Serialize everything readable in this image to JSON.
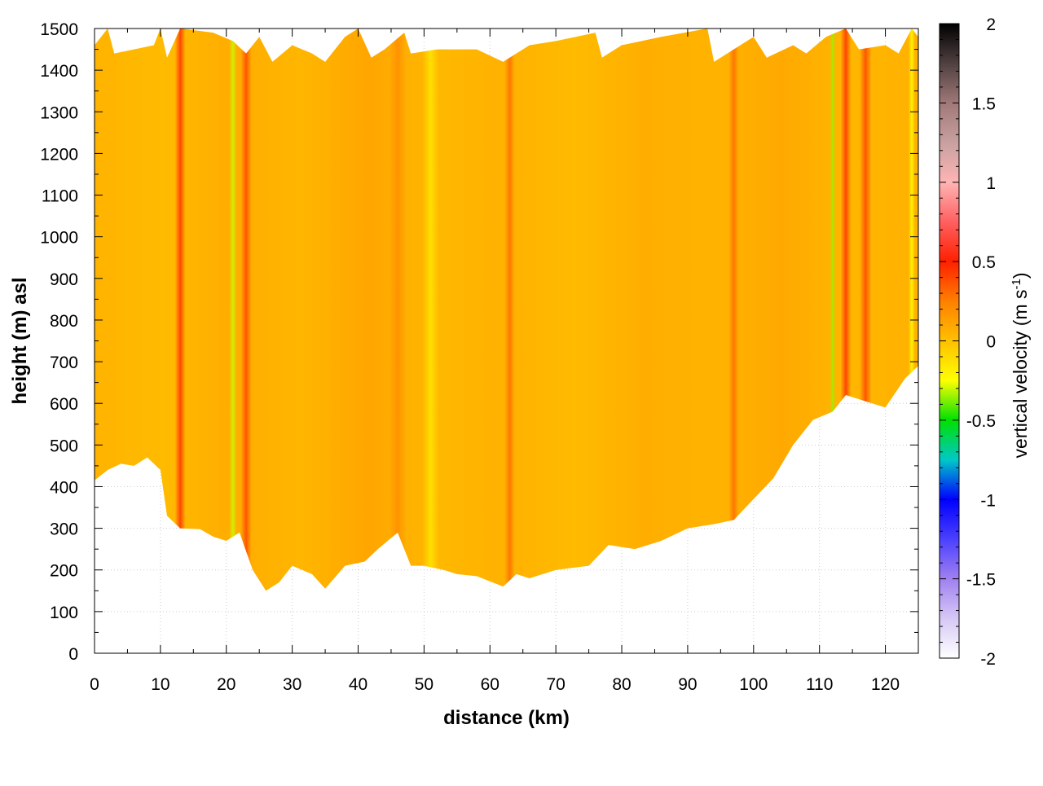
{
  "chart_data": {
    "type": "heatmap",
    "title": "",
    "xlabel": "distance (km)",
    "ylabel": "height (m) asl",
    "colorbar_label": "vertical velocity (m s",
    "colorbar_label_sup": "-1",
    "colorbar_label_end": ")",
    "xlim": [
      0,
      125
    ],
    "ylim": [
      0,
      1500
    ],
    "x_ticks": [
      "0",
      "10",
      "20",
      "30",
      "40",
      "50",
      "60",
      "70",
      "80",
      "90",
      "100",
      "110",
      "120"
    ],
    "x_tick_values": [
      0,
      10,
      20,
      30,
      40,
      50,
      60,
      70,
      80,
      90,
      100,
      110,
      120
    ],
    "y_ticks": [
      "0",
      "100",
      "200",
      "300",
      "400",
      "500",
      "600",
      "700",
      "800",
      "900",
      "1000",
      "1100",
      "1200",
      "1300",
      "1400",
      "1500"
    ],
    "y_tick_values": [
      0,
      100,
      200,
      300,
      400,
      500,
      600,
      700,
      800,
      900,
      1000,
      1100,
      1200,
      1300,
      1400,
      1500
    ],
    "colorbar_ticks": [
      "2",
      "1.5",
      "1",
      "0.5",
      "0",
      "-0.5",
      "-1",
      "-1.5",
      "-2"
    ],
    "colorbar_tick_values": [
      2,
      1.5,
      1,
      0.5,
      0,
      -0.5,
      -1,
      -1.5,
      -2
    ],
    "colorbar_range": [
      -2,
      2
    ],
    "grid": true,
    "colormap": [
      {
        "v": -2.0,
        "color": "#ffffff"
      },
      {
        "v": -1.75,
        "color": "#d6c8f5"
      },
      {
        "v": -1.5,
        "color": "#a080f0"
      },
      {
        "v": -1.25,
        "color": "#4b40ff"
      },
      {
        "v": -1.0,
        "color": "#0000ff"
      },
      {
        "v": -0.75,
        "color": "#00c8c8"
      },
      {
        "v": -0.5,
        "color": "#00e000"
      },
      {
        "v": -0.25,
        "color": "#ffff00"
      },
      {
        "v": 0.0,
        "color": "#ffc000"
      },
      {
        "v": 0.25,
        "color": "#ff8000"
      },
      {
        "v": 0.5,
        "color": "#ff2000"
      },
      {
        "v": 0.75,
        "color": "#ff6060"
      },
      {
        "v": 1.0,
        "color": "#ffb4b4"
      },
      {
        "v": 1.25,
        "color": "#c8a0a0"
      },
      {
        "v": 1.5,
        "color": "#a07878"
      },
      {
        "v": 1.75,
        "color": "#504040"
      },
      {
        "v": 2.0,
        "color": "#000000"
      }
    ],
    "data_bottom_boundary": [
      [
        0,
        415
      ],
      [
        2,
        440
      ],
      [
        4,
        455
      ],
      [
        6,
        450
      ],
      [
        8,
        470
      ],
      [
        10,
        440
      ],
      [
        11,
        330
      ],
      [
        13,
        300
      ],
      [
        16,
        298
      ],
      [
        18,
        280
      ],
      [
        20,
        270
      ],
      [
        22,
        290
      ],
      [
        24,
        200
      ],
      [
        26,
        150
      ],
      [
        28,
        170
      ],
      [
        30,
        210
      ],
      [
        33,
        190
      ],
      [
        35,
        155
      ],
      [
        38,
        210
      ],
      [
        41,
        220
      ],
      [
        43,
        250
      ],
      [
        46,
        290
      ],
      [
        48,
        210
      ],
      [
        50,
        210
      ],
      [
        53,
        200
      ],
      [
        55,
        190
      ],
      [
        58,
        185
      ],
      [
        62,
        160
      ],
      [
        64,
        190
      ],
      [
        66,
        180
      ],
      [
        70,
        200
      ],
      [
        75,
        210
      ],
      [
        78,
        260
      ],
      [
        82,
        250
      ],
      [
        86,
        270
      ],
      [
        90,
        300
      ],
      [
        94,
        310
      ],
      [
        97,
        320
      ],
      [
        100,
        370
      ],
      [
        103,
        420
      ],
      [
        106,
        500
      ],
      [
        109,
        560
      ],
      [
        112,
        580
      ],
      [
        114,
        620
      ],
      [
        116,
        610
      ],
      [
        118,
        600
      ],
      [
        120,
        590
      ],
      [
        123,
        660
      ],
      [
        125,
        690
      ]
    ],
    "data_top_boundary": [
      [
        0,
        1460
      ],
      [
        2,
        1500
      ],
      [
        3,
        1440
      ],
      [
        6,
        1450
      ],
      [
        9,
        1460
      ],
      [
        10,
        1500
      ],
      [
        11,
        1430
      ],
      [
        13,
        1500
      ],
      [
        18,
        1490
      ],
      [
        21,
        1470
      ],
      [
        23,
        1440
      ],
      [
        25,
        1480
      ],
      [
        27,
        1420
      ],
      [
        30,
        1460
      ],
      [
        33,
        1440
      ],
      [
        35,
        1420
      ],
      [
        38,
        1480
      ],
      [
        40,
        1500
      ],
      [
        42,
        1430
      ],
      [
        44,
        1450
      ],
      [
        47,
        1490
      ],
      [
        48,
        1440
      ],
      [
        52,
        1450
      ],
      [
        58,
        1450
      ],
      [
        62,
        1420
      ],
      [
        66,
        1460
      ],
      [
        70,
        1470
      ],
      [
        76,
        1490
      ],
      [
        77,
        1430
      ],
      [
        80,
        1460
      ],
      [
        86,
        1480
      ],
      [
        93,
        1500
      ],
      [
        94,
        1420
      ],
      [
        100,
        1480
      ],
      [
        102,
        1430
      ],
      [
        106,
        1460
      ],
      [
        108,
        1440
      ],
      [
        111,
        1480
      ],
      [
        114,
        1500
      ],
      [
        116,
        1450
      ],
      [
        120,
        1460
      ],
      [
        122,
        1440
      ],
      [
        124,
        1500
      ],
      [
        125,
        1480
      ]
    ],
    "field_features": [
      {
        "x": 13,
        "width": 1.6,
        "value": 0.45
      },
      {
        "x": 21,
        "width": 1.2,
        "value": -0.3
      },
      {
        "x": 23,
        "width": 1.6,
        "value": 0.4
      },
      {
        "x": 46,
        "width": 2.5,
        "value": 0.2
      },
      {
        "x": 51,
        "width": 2.5,
        "value": -0.15
      },
      {
        "x": 63,
        "width": 1.5,
        "value": 0.3
      },
      {
        "x": 97,
        "width": 1.5,
        "value": 0.3
      },
      {
        "x": 112,
        "width": 0.8,
        "value": -0.35
      },
      {
        "x": 114,
        "width": 1.6,
        "value": 0.45
      },
      {
        "x": 117,
        "width": 1.8,
        "value": 0.4
      },
      {
        "x": 124,
        "width": 1.0,
        "value": -0.25
      }
    ]
  }
}
